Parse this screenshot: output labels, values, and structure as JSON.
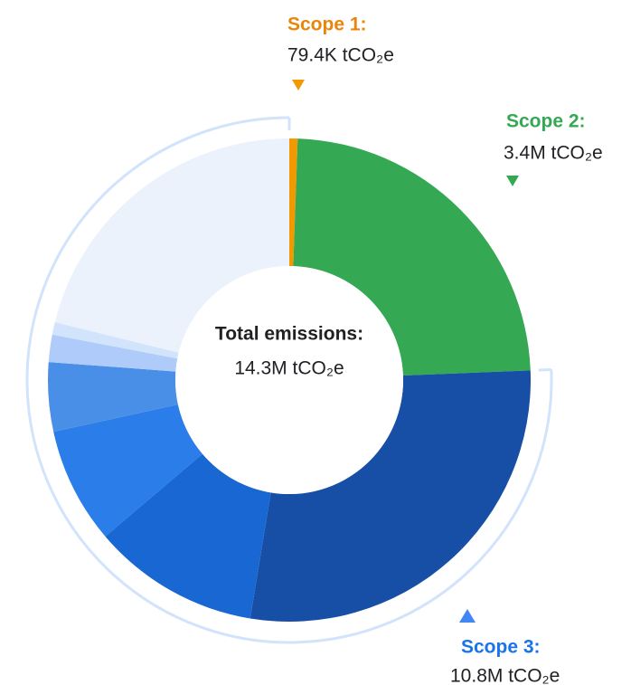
{
  "chart_data": {
    "type": "donut",
    "center_title": "Total emissions:",
    "center_value": 14300000,
    "center_value_label": "14.3M tCO₂e",
    "series": [
      {
        "name": "Scope 1:",
        "color": "#e8860c",
        "colors": [
          "#f29900"
        ],
        "values": [
          79400
        ],
        "total": 79400,
        "total_label": "79.4K tCO₂e"
      },
      {
        "name": "Scope 2:",
        "color": "#34a853",
        "colors": [
          "#34a853"
        ],
        "values": [
          3400000
        ],
        "total": 3400000,
        "total_label": "3.4M tCO₂e"
      },
      {
        "name": "Scope 3:",
        "color": "#1a73e8",
        "colors": [
          "#174ea6",
          "#1967d2",
          "#2b7de9",
          "#4a8fe7",
          "#aecbfa",
          "#d2e3fc",
          "#ebf2fc"
        ],
        "values": [
          4030000,
          1600000,
          1110000,
          660000,
          260000,
          120000,
          3020000
        ],
        "total": 10800000,
        "total_label": "10.8M tCO₂e"
      }
    ]
  }
}
